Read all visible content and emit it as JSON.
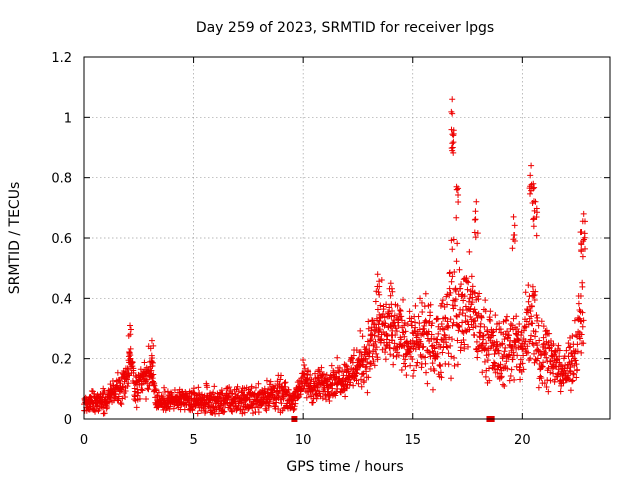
{
  "chart_data": {
    "type": "scatter",
    "title": "Day 259 of 2023, SRMTID for receiver lpgs",
    "xlabel": "GPS time / hours",
    "ylabel": "SRMTID / TECUs",
    "xlim": [
      0,
      24
    ],
    "ylim": [
      0,
      1.2
    ],
    "xticks": [
      0,
      5,
      10,
      15,
      20
    ],
    "xtick_labels": [
      "0",
      "5",
      "10",
      "15",
      "20"
    ],
    "yticks": [
      0,
      0.2,
      0.4,
      0.6,
      0.8,
      1.0,
      1.2
    ],
    "ytick_labels": [
      "0",
      "0.2",
      "0.4",
      "0.6",
      "0.8",
      "1",
      "1.2"
    ],
    "grid": true,
    "series": [
      {
        "name": "SRMTID",
        "marker": "plus",
        "color": "#ee0000",
        "envelope": {
          "x": [
            0,
            0.5,
            1.0,
            1.5,
            1.9,
            2.1,
            2.3,
            2.6,
            2.9,
            3.1,
            3.3,
            4.0,
            5.0,
            6.0,
            7.0,
            8.0,
            8.5,
            9.0,
            9.5,
            10.0,
            10.5,
            11.0,
            11.5,
            12.0,
            12.5,
            13.0,
            13.5,
            14.0,
            14.5,
            15.0,
            15.5,
            16.0,
            16.5,
            16.8,
            17.0,
            17.3,
            17.5,
            18.0,
            18.5,
            19.0,
            19.5,
            20.0,
            20.3,
            20.5,
            20.8,
            21.0,
            21.5,
            22.0,
            22.3,
            22.6,
            22.8
          ],
          "center": [
            0.05,
            0.055,
            0.06,
            0.1,
            0.12,
            0.2,
            0.1,
            0.12,
            0.15,
            0.18,
            0.06,
            0.06,
            0.06,
            0.06,
            0.06,
            0.07,
            0.08,
            0.08,
            0.06,
            0.13,
            0.1,
            0.12,
            0.13,
            0.14,
            0.18,
            0.22,
            0.3,
            0.27,
            0.28,
            0.24,
            0.27,
            0.24,
            0.3,
            0.38,
            0.4,
            0.32,
            0.38,
            0.3,
            0.24,
            0.22,
            0.25,
            0.22,
            0.32,
            0.35,
            0.22,
            0.24,
            0.18,
            0.15,
            0.2,
            0.3,
            0.4
          ],
          "spread": [
            0.03,
            0.03,
            0.03,
            0.04,
            0.05,
            0.08,
            0.05,
            0.05,
            0.06,
            0.07,
            0.03,
            0.03,
            0.04,
            0.04,
            0.04,
            0.04,
            0.05,
            0.05,
            0.03,
            0.05,
            0.05,
            0.05,
            0.05,
            0.05,
            0.08,
            0.1,
            0.12,
            0.1,
            0.1,
            0.1,
            0.12,
            0.1,
            0.15,
            0.2,
            0.2,
            0.15,
            0.15,
            0.12,
            0.1,
            0.1,
            0.12,
            0.1,
            0.18,
            0.2,
            0.12,
            0.1,
            0.06,
            0.06,
            0.08,
            0.12,
            0.15
          ]
        },
        "peaks": [
          {
            "x": 2.1,
            "y": 0.31
          },
          {
            "x": 3.1,
            "y": 0.26
          },
          {
            "x": 13.4,
            "y": 0.48
          },
          {
            "x": 14.0,
            "y": 0.45
          },
          {
            "x": 16.8,
            "y": 1.06
          },
          {
            "x": 16.85,
            "y": 0.94
          },
          {
            "x": 17.0,
            "y": 0.77
          },
          {
            "x": 17.9,
            "y": 0.72
          },
          {
            "x": 19.6,
            "y": 0.67
          },
          {
            "x": 20.4,
            "y": 0.84
          },
          {
            "x": 20.5,
            "y": 0.78
          },
          {
            "x": 20.6,
            "y": 0.72
          },
          {
            "x": 22.8,
            "y": 0.68
          },
          {
            "x": 22.7,
            "y": 0.62
          }
        ]
      },
      {
        "name": "markers",
        "marker": "square",
        "color": "#dd0000",
        "points": [
          {
            "x": 9.6,
            "y": 0.0
          },
          {
            "x": 18.5,
            "y": 0.0
          },
          {
            "x": 18.6,
            "y": 0.0
          }
        ]
      }
    ]
  }
}
